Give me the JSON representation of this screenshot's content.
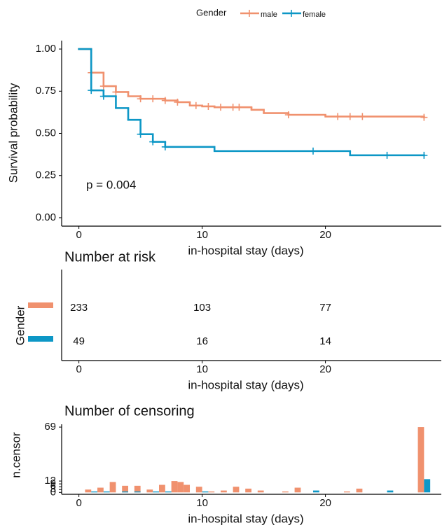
{
  "chart_data": [
    {
      "type": "step",
      "legend_title": "Gender",
      "y_label": "Survival probability",
      "x_label": "in-hospital stay (days)",
      "annotation": "p = 0.004",
      "xlim": [
        -1.4,
        29.4
      ],
      "xticks": [
        0,
        10,
        20
      ],
      "ylim": [
        -0.05,
        1.05
      ],
      "yticks": [
        {
          "value": 0,
          "label": "0.00"
        },
        {
          "value": 0.25,
          "label": "0.25"
        },
        {
          "value": 0.5,
          "label": "0.50"
        },
        {
          "value": 0.75,
          "label": "0.75"
        },
        {
          "value": 1,
          "label": "1.00"
        }
      ],
      "series": [
        {
          "name": "male",
          "color": "#f0916e",
          "x": [
            0,
            1,
            2,
            3,
            4,
            5,
            7,
            8,
            9,
            10,
            11,
            14,
            15,
            17,
            20,
            28
          ],
          "values": [
            1,
            0.86,
            0.78,
            0.745,
            0.72,
            0.705,
            0.695,
            0.685,
            0.665,
            0.66,
            0.655,
            0.64,
            0.62,
            0.61,
            0.6,
            0.595
          ],
          "censored": {
            "x": [
              1,
              2,
              3,
              5,
              6,
              7,
              8,
              9.5,
              10.5,
              11.5,
              12.5,
              13,
              17,
              21,
              22,
              23,
              28
            ],
            "values": [
              0.86,
              0.78,
              0.745,
              0.705,
              0.705,
              0.695,
              0.685,
              0.665,
              0.66,
              0.655,
              0.655,
              0.655,
              0.61,
              0.6,
              0.6,
              0.6,
              0.595
            ]
          }
        },
        {
          "name": "female",
          "color": "#0d97c6",
          "x": [
            0,
            1,
            2,
            3,
            4,
            5,
            6,
            7,
            11,
            22,
            28
          ],
          "values": [
            1,
            0.755,
            0.72,
            0.65,
            0.58,
            0.495,
            0.45,
            0.42,
            0.395,
            0.37,
            0.37
          ],
          "censored": {
            "x": [
              1,
              2,
              5,
              6,
              7,
              19,
              25,
              28
            ],
            "values": [
              0.755,
              0.72,
              0.495,
              0.45,
              0.42,
              0.395,
              0.37,
              0.37
            ]
          }
        }
      ]
    },
    {
      "type": "table",
      "title": "Number at risk",
      "y_label": "Gender",
      "x_label": "in-hospital stay (days)",
      "xlim": [
        -1.4,
        29.4
      ],
      "xticks": [
        0,
        10,
        20
      ],
      "x": [
        0,
        10,
        20
      ],
      "series": [
        {
          "color": "#f0916e",
          "values": [
            233,
            103,
            77
          ]
        },
        {
          "color": "#0d97c6",
          "values": [
            49,
            16,
            14
          ]
        }
      ]
    },
    {
      "type": "bar",
      "title": "Number of censoring",
      "y_label": "n.censor",
      "x_label": "in-hospital stay (days)",
      "xlim": [
        -1.4,
        29.4
      ],
      "xticks": [
        0,
        10,
        20
      ],
      "ylim": [
        -2,
        72
      ],
      "yticks": [
        0,
        3,
        6,
        9,
        12,
        69
      ],
      "series": [
        {
          "color": "#f0916e",
          "x": [
            1,
            2,
            3,
            4,
            5,
            6,
            7,
            8,
            8.5,
            9,
            10,
            11,
            12,
            13,
            14,
            15,
            17,
            18,
            22,
            23,
            28
          ],
          "values": [
            3,
            5,
            11,
            7,
            7,
            3,
            8,
            12,
            11,
            8,
            6,
            1,
            2,
            6,
            4,
            2,
            1,
            5,
            1,
            4,
            69
          ]
        },
        {
          "color": "#0d97c6",
          "x": [
            1,
            2,
            3.5,
            4.5,
            6,
            7,
            10,
            19,
            25,
            28
          ],
          "values": [
            1,
            1,
            1,
            1,
            1,
            1,
            1,
            2,
            2,
            14
          ]
        }
      ]
    }
  ]
}
